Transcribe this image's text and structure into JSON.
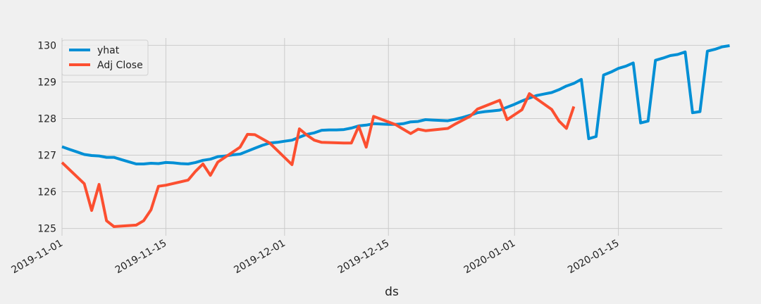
{
  "chart_data": {
    "type": "line",
    "title": "",
    "xlabel": "ds",
    "ylabel": "",
    "x_type": "date",
    "xlim": [
      "2019-11-01",
      "2020-01-29"
    ],
    "ylim": [
      124.8,
      130.2
    ],
    "grid": true,
    "legend_position": "top-left",
    "x_ticks": [
      "2019-11-01",
      "2019-11-15",
      "2019-12-01",
      "2019-12-15",
      "2020-01-01",
      "2020-01-15"
    ],
    "y_ticks": [
      125,
      126,
      127,
      128,
      129,
      130
    ],
    "colors": {
      "yhat": "#008fd5",
      "adj_close": "#fc4f30",
      "background": "#f0f0f0",
      "grid": "#cbcbcb"
    },
    "series": [
      {
        "name": "yhat",
        "color": "#008fd5",
        "points": [
          [
            "2019-11-01",
            127.23
          ],
          [
            "2019-11-02",
            127.16
          ],
          [
            "2019-11-03",
            127.09
          ],
          [
            "2019-11-04",
            127.02
          ],
          [
            "2019-11-05",
            126.99
          ],
          [
            "2019-11-06",
            126.98
          ],
          [
            "2019-11-07",
            126.94
          ],
          [
            "2019-11-08",
            126.94
          ],
          [
            "2019-11-09",
            126.88
          ],
          [
            "2019-11-10",
            126.82
          ],
          [
            "2019-11-11",
            126.76
          ],
          [
            "2019-11-12",
            126.76
          ],
          [
            "2019-11-13",
            126.78
          ],
          [
            "2019-11-14",
            126.77
          ],
          [
            "2019-11-15",
            126.8
          ],
          [
            "2019-11-16",
            126.79
          ],
          [
            "2019-11-17",
            126.77
          ],
          [
            "2019-11-18",
            126.76
          ],
          [
            "2019-11-19",
            126.8
          ],
          [
            "2019-11-20",
            126.86
          ],
          [
            "2019-11-21",
            126.89
          ],
          [
            "2019-11-22",
            126.96
          ],
          [
            "2019-11-23",
            126.98
          ],
          [
            "2019-11-24",
            127.01
          ],
          [
            "2019-11-25",
            127.03
          ],
          [
            "2019-11-26",
            127.11
          ],
          [
            "2019-11-27",
            127.19
          ],
          [
            "2019-11-28",
            127.27
          ],
          [
            "2019-11-29",
            127.33
          ],
          [
            "2019-11-30",
            127.35
          ],
          [
            "2019-12-01",
            127.38
          ],
          [
            "2019-12-02",
            127.41
          ],
          [
            "2019-12-03",
            127.49
          ],
          [
            "2019-12-04",
            127.57
          ],
          [
            "2019-12-05",
            127.61
          ],
          [
            "2019-12-06",
            127.68
          ],
          [
            "2019-12-07",
            127.69
          ],
          [
            "2019-12-08",
            127.69
          ],
          [
            "2019-12-09",
            127.7
          ],
          [
            "2019-12-10",
            127.74
          ],
          [
            "2019-12-11",
            127.8
          ],
          [
            "2019-12-12",
            127.82
          ],
          [
            "2019-12-13",
            127.86
          ],
          [
            "2019-12-14",
            127.85
          ],
          [
            "2019-12-15",
            127.84
          ],
          [
            "2019-12-16",
            127.84
          ],
          [
            "2019-12-17",
            127.86
          ],
          [
            "2019-12-18",
            127.91
          ],
          [
            "2019-12-19",
            127.92
          ],
          [
            "2019-12-20",
            127.97
          ],
          [
            "2019-12-21",
            127.96
          ],
          [
            "2019-12-22",
            127.95
          ],
          [
            "2019-12-23",
            127.94
          ],
          [
            "2019-12-24",
            127.98
          ],
          [
            "2019-12-25",
            128.03
          ],
          [
            "2019-12-26",
            128.09
          ],
          [
            "2019-12-27",
            128.16
          ],
          [
            "2019-12-28",
            128.19
          ],
          [
            "2019-12-29",
            128.21
          ],
          [
            "2019-12-30",
            128.23
          ],
          [
            "2019-12-31",
            128.31
          ],
          [
            "2020-01-01",
            128.39
          ],
          [
            "2020-01-02",
            128.48
          ],
          [
            "2020-01-03",
            128.56
          ],
          [
            "2020-01-04",
            128.63
          ],
          [
            "2020-01-05",
            128.67
          ],
          [
            "2020-01-06",
            128.71
          ],
          [
            "2020-01-07",
            128.79
          ],
          [
            "2020-01-08",
            128.89
          ],
          [
            "2020-01-09",
            128.96
          ],
          [
            "2020-01-10",
            129.07
          ],
          [
            "2020-01-11",
            127.45
          ],
          [
            "2020-01-12",
            127.51
          ],
          [
            "2020-01-13",
            129.19
          ],
          [
            "2020-01-14",
            129.27
          ],
          [
            "2020-01-15",
            129.37
          ],
          [
            "2020-01-16",
            129.43
          ],
          [
            "2020-01-17",
            129.52
          ],
          [
            "2020-01-18",
            127.88
          ],
          [
            "2020-01-19",
            127.93
          ],
          [
            "2020-01-20",
            129.59
          ],
          [
            "2020-01-21",
            129.65
          ],
          [
            "2020-01-22",
            129.72
          ],
          [
            "2020-01-23",
            129.75
          ],
          [
            "2020-01-24",
            129.82
          ],
          [
            "2020-01-25",
            128.16
          ],
          [
            "2020-01-26",
            128.19
          ],
          [
            "2020-01-27",
            129.84
          ],
          [
            "2020-01-28",
            129.89
          ],
          [
            "2020-01-29",
            129.96
          ],
          [
            "2020-01-30",
            129.99
          ]
        ]
      },
      {
        "name": "Adj Close",
        "color": "#fc4f30",
        "points": [
          [
            "2019-11-01",
            126.8
          ],
          [
            "2019-11-04",
            126.22
          ],
          [
            "2019-11-05",
            125.49
          ],
          [
            "2019-11-06",
            126.2
          ],
          [
            "2019-11-07",
            125.21
          ],
          [
            "2019-11-08",
            125.05
          ],
          [
            "2019-11-11",
            125.09
          ],
          [
            "2019-11-12",
            125.21
          ],
          [
            "2019-11-13",
            125.51
          ],
          [
            "2019-11-14",
            126.15
          ],
          [
            "2019-11-15",
            126.18
          ],
          [
            "2019-11-18",
            126.32
          ],
          [
            "2019-11-19",
            126.56
          ],
          [
            "2019-11-20",
            126.76
          ],
          [
            "2019-11-21",
            126.45
          ],
          [
            "2019-11-22",
            126.81
          ],
          [
            "2019-11-25",
            127.22
          ],
          [
            "2019-11-26",
            127.57
          ],
          [
            "2019-11-27",
            127.56
          ],
          [
            "2019-11-29",
            127.33
          ],
          [
            "2019-12-02",
            126.74
          ],
          [
            "2019-12-03",
            127.72
          ],
          [
            "2019-12-04",
            127.55
          ],
          [
            "2019-12-05",
            127.41
          ],
          [
            "2019-12-06",
            127.35
          ],
          [
            "2019-12-09",
            127.33
          ],
          [
            "2019-12-10",
            127.33
          ],
          [
            "2019-12-11",
            127.79
          ],
          [
            "2019-12-12",
            127.22
          ],
          [
            "2019-12-13",
            128.06
          ],
          [
            "2019-12-16",
            127.83
          ],
          [
            "2019-12-17",
            127.71
          ],
          [
            "2019-12-18",
            127.59
          ],
          [
            "2019-12-19",
            127.71
          ],
          [
            "2019-12-20",
            127.67
          ],
          [
            "2019-12-23",
            127.73
          ],
          [
            "2019-12-24",
            127.85
          ],
          [
            "2019-12-26",
            128.06
          ],
          [
            "2019-12-27",
            128.26
          ],
          [
            "2019-12-30",
            128.5
          ],
          [
            "2019-12-31",
            127.97
          ],
          [
            "2020-01-02",
            128.24
          ],
          [
            "2020-01-03",
            128.68
          ],
          [
            "2020-01-06",
            128.25
          ],
          [
            "2020-01-07",
            127.93
          ],
          [
            "2020-01-08",
            127.73
          ],
          [
            "2020-01-09",
            128.33
          ]
        ]
      }
    ]
  }
}
